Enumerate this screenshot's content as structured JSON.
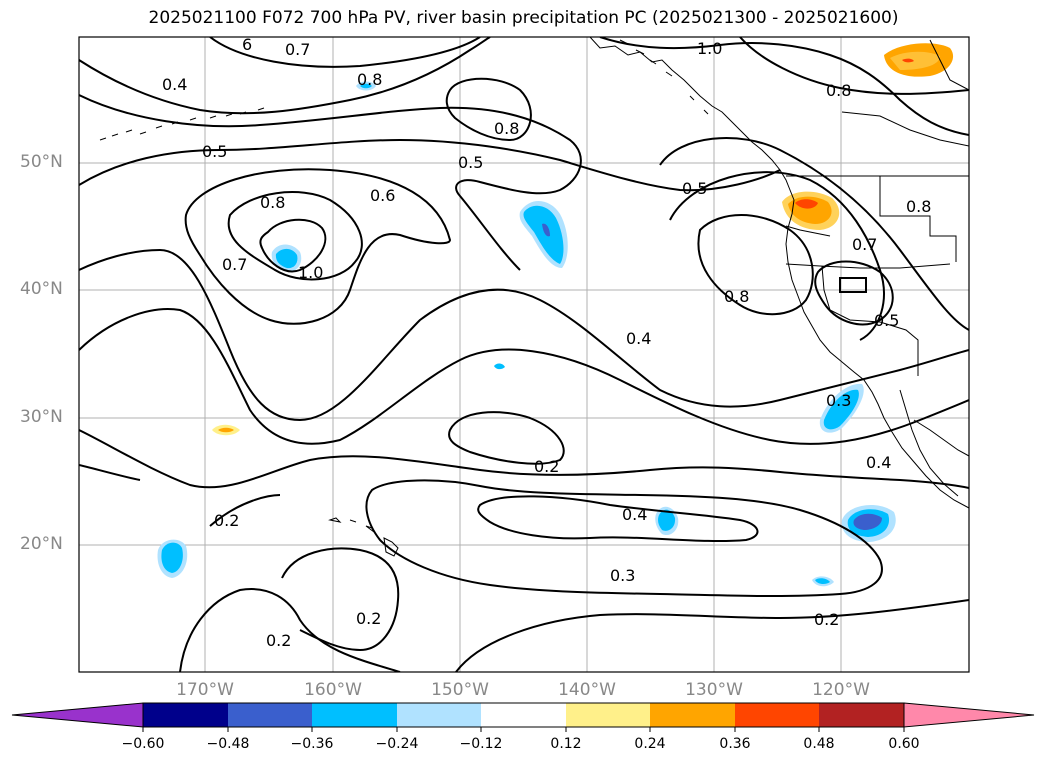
{
  "title": "2025021100 F072 700 hPa PV, river basin precipitation PC (2025021300 - 2025021600)",
  "lat_labels": [
    "50°N",
    "40°N",
    "30°N",
    "20°N"
  ],
  "lon_labels": [
    "170°W",
    "160°W",
    "150°W",
    "140°W",
    "130°W",
    "120°W"
  ],
  "colorbar": {
    "ticks": [
      "−0.60",
      "−0.48",
      "−0.36",
      "−0.24",
      "−0.12",
      "0.12",
      "0.24",
      "0.36",
      "0.48",
      "0.60"
    ],
    "colors": {
      "under": "#9932cc",
      "bins": [
        "#00008b",
        "#3a5fcd",
        "#00bfff",
        "#b0e2ff",
        "#ffffff",
        "#fff08a",
        "#ffa500",
        "#ff4500",
        "#b22222",
        "#ff88aa"
      ],
      "over": "#ff88aa"
    }
  },
  "contour_labels": [
    "0.4",
    "6",
    "0.7",
    "0.8",
    "1.0",
    "0.8",
    "0.8",
    "0.5",
    "0.5",
    "0.5",
    "0.8",
    "0.6",
    "0.7",
    "1.0",
    "0.8",
    "0.7",
    "0.8",
    "0.5",
    "0.4",
    "0.3",
    "0.4",
    "0.2",
    "0.2",
    "0.4",
    "0.3",
    "0.2",
    "0.2",
    "0.2"
  ]
}
